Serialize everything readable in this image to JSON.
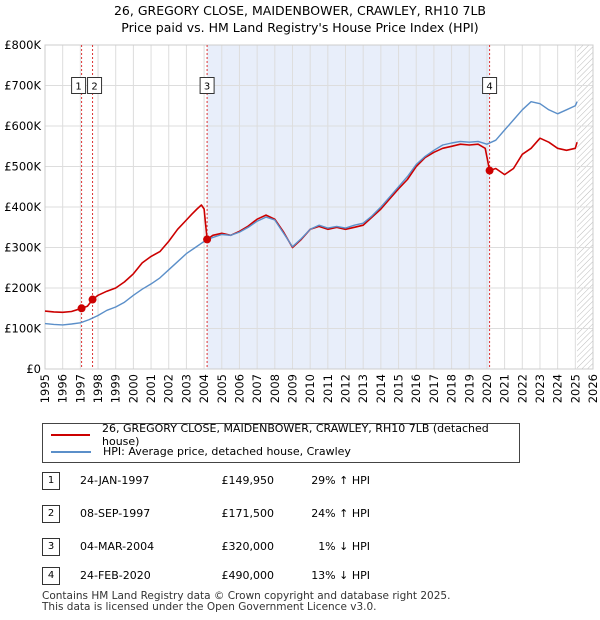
{
  "title": {
    "line1": "26, GREGORY CLOSE, MAIDENBOWER, CRAWLEY, RH10 7LB",
    "line2": "Price paid vs. HM Land Registry's House Price Index (HPI)"
  },
  "chart_data": {
    "type": "line",
    "title": "26, GREGORY CLOSE, MAIDENBOWER, CRAWLEY, RH10 7LB - Price paid vs. HM Land Registry's House Price Index (HPI)",
    "xlabel": "",
    "ylabel": "",
    "xlim": [
      1995,
      2026
    ],
    "ylim": [
      0,
      800000
    ],
    "x_ticks": [
      1995,
      1996,
      1997,
      1998,
      1999,
      2000,
      2001,
      2002,
      2003,
      2004,
      2005,
      2006,
      2007,
      2008,
      2009,
      2010,
      2011,
      2012,
      2013,
      2014,
      2015,
      2016,
      2017,
      2018,
      2019,
      2020,
      2021,
      2022,
      2023,
      2024,
      2025,
      2026
    ],
    "y_ticks": [
      {
        "value": 0,
        "label": "£0"
      },
      {
        "value": 100000,
        "label": "£100K"
      },
      {
        "value": 200000,
        "label": "£200K"
      },
      {
        "value": 300000,
        "label": "£300K"
      },
      {
        "value": 400000,
        "label": "£400K"
      },
      {
        "value": 500000,
        "label": "£500K"
      },
      {
        "value": 600000,
        "label": "£600K"
      },
      {
        "value": 700000,
        "label": "£700K"
      },
      {
        "value": 800000,
        "label": "£800K"
      }
    ],
    "shaded_period": [
      2004.17,
      2020.15
    ],
    "forecast_hatch_from": 2025.1,
    "series": [
      {
        "name": "26, GREGORY CLOSE, MAIDENBOWER, CRAWLEY, RH10 7LB (detached house)",
        "color": "#cc0000",
        "points": [
          [
            1995.0,
            143000
          ],
          [
            1995.5,
            141000
          ],
          [
            1996.0,
            140000
          ],
          [
            1996.5,
            142000
          ],
          [
            1997.07,
            149950
          ],
          [
            1997.4,
            155000
          ],
          [
            1997.69,
            171500
          ],
          [
            1998.0,
            182000
          ],
          [
            1998.5,
            192000
          ],
          [
            1999.0,
            200000
          ],
          [
            1999.5,
            215000
          ],
          [
            2000.0,
            235000
          ],
          [
            2000.5,
            262000
          ],
          [
            2001.0,
            278000
          ],
          [
            2001.5,
            290000
          ],
          [
            2002.0,
            315000
          ],
          [
            2002.5,
            345000
          ],
          [
            2003.0,
            368000
          ],
          [
            2003.3,
            382000
          ],
          [
            2003.6,
            395000
          ],
          [
            2003.85,
            405000
          ],
          [
            2004.0,
            395000
          ],
          [
            2004.17,
            320000
          ],
          [
            2004.5,
            330000
          ],
          [
            2005.0,
            335000
          ],
          [
            2005.5,
            330000
          ],
          [
            2006.0,
            340000
          ],
          [
            2006.5,
            353000
          ],
          [
            2007.0,
            370000
          ],
          [
            2007.5,
            380000
          ],
          [
            2008.0,
            370000
          ],
          [
            2008.5,
            338000
          ],
          [
            2009.0,
            300000
          ],
          [
            2009.5,
            320000
          ],
          [
            2010.0,
            345000
          ],
          [
            2010.5,
            352000
          ],
          [
            2011.0,
            345000
          ],
          [
            2011.5,
            350000
          ],
          [
            2012.0,
            345000
          ],
          [
            2012.5,
            350000
          ],
          [
            2013.0,
            355000
          ],
          [
            2013.5,
            375000
          ],
          [
            2014.0,
            395000
          ],
          [
            2014.5,
            420000
          ],
          [
            2015.0,
            445000
          ],
          [
            2015.5,
            468000
          ],
          [
            2016.0,
            500000
          ],
          [
            2016.5,
            522000
          ],
          [
            2017.0,
            535000
          ],
          [
            2017.5,
            545000
          ],
          [
            2018.0,
            550000
          ],
          [
            2018.5,
            555000
          ],
          [
            2019.0,
            553000
          ],
          [
            2019.5,
            555000
          ],
          [
            2019.9,
            545000
          ],
          [
            2020.15,
            490000
          ],
          [
            2020.5,
            495000
          ],
          [
            2021.0,
            480000
          ],
          [
            2021.5,
            495000
          ],
          [
            2022.0,
            530000
          ],
          [
            2022.5,
            545000
          ],
          [
            2023.0,
            570000
          ],
          [
            2023.5,
            560000
          ],
          [
            2024.0,
            545000
          ],
          [
            2024.5,
            540000
          ],
          [
            2025.0,
            545000
          ],
          [
            2025.1,
            560000
          ]
        ]
      },
      {
        "name": "HPI: Average price, detached house, Crawley",
        "color": "#5b8fc9",
        "points": [
          [
            1995.0,
            112000
          ],
          [
            1995.5,
            110000
          ],
          [
            1996.0,
            109000
          ],
          [
            1996.5,
            111000
          ],
          [
            1997.0,
            114000
          ],
          [
            1997.5,
            122000
          ],
          [
            1998.0,
            132000
          ],
          [
            1998.5,
            145000
          ],
          [
            1999.0,
            153000
          ],
          [
            1999.5,
            165000
          ],
          [
            2000.0,
            182000
          ],
          [
            2000.5,
            197000
          ],
          [
            2001.0,
            210000
          ],
          [
            2001.5,
            225000
          ],
          [
            2002.0,
            245000
          ],
          [
            2002.5,
            265000
          ],
          [
            2003.0,
            285000
          ],
          [
            2003.5,
            300000
          ],
          [
            2004.0,
            315000
          ],
          [
            2004.5,
            325000
          ],
          [
            2005.0,
            332000
          ],
          [
            2005.5,
            330000
          ],
          [
            2006.0,
            338000
          ],
          [
            2006.5,
            350000
          ],
          [
            2007.0,
            365000
          ],
          [
            2007.5,
            375000
          ],
          [
            2008.0,
            368000
          ],
          [
            2008.5,
            335000
          ],
          [
            2009.0,
            302000
          ],
          [
            2009.5,
            322000
          ],
          [
            2010.0,
            345000
          ],
          [
            2010.5,
            355000
          ],
          [
            2011.0,
            348000
          ],
          [
            2011.5,
            352000
          ],
          [
            2012.0,
            348000
          ],
          [
            2012.5,
            355000
          ],
          [
            2013.0,
            360000
          ],
          [
            2013.5,
            378000
          ],
          [
            2014.0,
            400000
          ],
          [
            2014.5,
            425000
          ],
          [
            2015.0,
            450000
          ],
          [
            2015.5,
            475000
          ],
          [
            2016.0,
            505000
          ],
          [
            2016.5,
            525000
          ],
          [
            2017.0,
            540000
          ],
          [
            2017.5,
            553000
          ],
          [
            2018.0,
            558000
          ],
          [
            2018.5,
            562000
          ],
          [
            2019.0,
            560000
          ],
          [
            2019.5,
            562000
          ],
          [
            2020.0,
            555000
          ],
          [
            2020.5,
            565000
          ],
          [
            2021.0,
            590000
          ],
          [
            2021.5,
            615000
          ],
          [
            2022.0,
            640000
          ],
          [
            2022.5,
            660000
          ],
          [
            2023.0,
            655000
          ],
          [
            2023.5,
            640000
          ],
          [
            2024.0,
            630000
          ],
          [
            2024.5,
            640000
          ],
          [
            2025.0,
            650000
          ],
          [
            2025.1,
            660000
          ]
        ]
      }
    ],
    "sales": [
      {
        "id": "1",
        "x": 1997.07,
        "value": 149950,
        "label_value": 700000
      },
      {
        "id": "2",
        "x": 1997.69,
        "value": 171500,
        "label_value": 700000
      },
      {
        "id": "3",
        "x": 2004.17,
        "value": 320000,
        "label_value": 700000
      },
      {
        "id": "4",
        "x": 2020.15,
        "value": 490000,
        "label_value": 700000
      }
    ]
  },
  "legend": {
    "price_paid_label": "26, GREGORY CLOSE, MAIDENBOWER, CRAWLEY, RH10 7LB (detached house)",
    "hpi_label": "HPI: Average price, detached house, Crawley"
  },
  "transactions": [
    {
      "num": "1",
      "date": "24-JAN-1997",
      "price": "£149,950",
      "hpi": "29% ↑ HPI"
    },
    {
      "num": "2",
      "date": "08-SEP-1997",
      "price": "£171,500",
      "hpi": "24% ↑ HPI"
    },
    {
      "num": "3",
      "date": "04-MAR-2004",
      "price": "£320,000",
      "hpi": "1% ↓ HPI"
    },
    {
      "num": "4",
      "date": "24-FEB-2020",
      "price": "£490,000",
      "hpi": "13% ↓ HPI"
    }
  ],
  "footer": {
    "line1": "Contains HM Land Registry data © Crown copyright and database right 2025.",
    "line2": "This data is licensed under the Open Government Licence v3.0."
  }
}
